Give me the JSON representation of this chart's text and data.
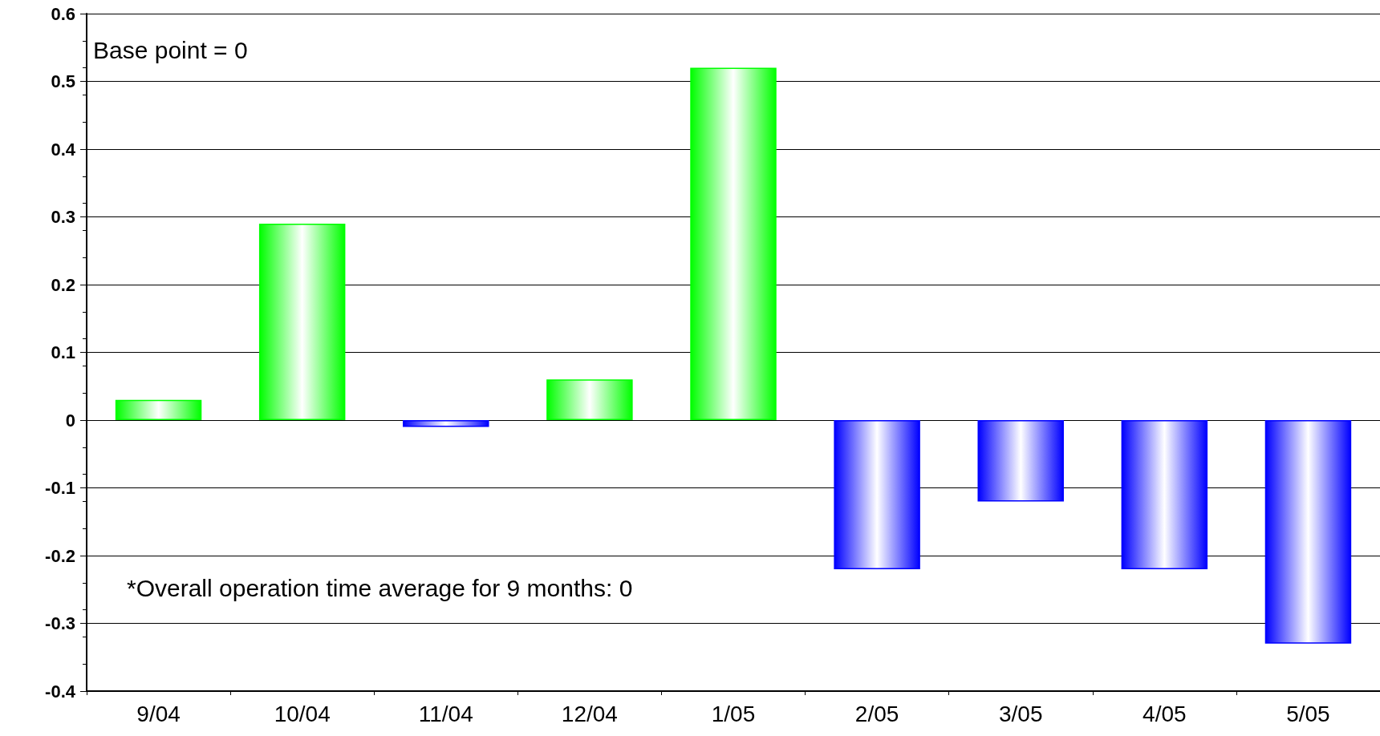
{
  "chart_data": {
    "type": "bar",
    "categories": [
      "9/04",
      "10/04",
      "11/04",
      "12/04",
      "1/05",
      "2/05",
      "3/05",
      "4/05",
      "5/05"
    ],
    "values": [
      0.03,
      0.29,
      -0.01,
      0.06,
      0.52,
      -0.22,
      -0.12,
      -0.22,
      -0.33
    ],
    "colors": [
      "#00ff00",
      "#00ff00",
      "#0000ff",
      "#00ff00",
      "#00ff00",
      "#0000ff",
      "#0000ff",
      "#0000ff",
      "#0000ff"
    ],
    "ylim": [
      -0.4,
      0.6
    ],
    "yticks": [
      -0.4,
      -0.3,
      -0.2,
      -0.1,
      0,
      0.1,
      0.2,
      0.3,
      0.4,
      0.5,
      0.6
    ],
    "grid": "y",
    "annotations": [
      "Base point = 0",
      "*Overall operation time average for 9 months: 0"
    ]
  }
}
